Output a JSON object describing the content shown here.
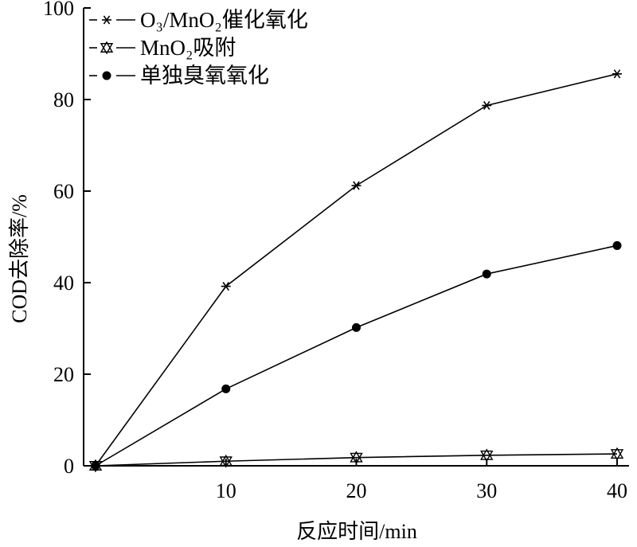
{
  "chart_data": {
    "type": "line",
    "x": [
      0,
      10,
      20,
      30,
      40
    ],
    "xlabel": "反应时间/min",
    "ylabel": "COD去除率/%",
    "xlim": [
      0,
      40
    ],
    "ylim": [
      0,
      100
    ],
    "x_ticks": [
      "10",
      "20",
      "30",
      "40"
    ],
    "y_ticks": [
      "0",
      "20",
      "40",
      "60",
      "80",
      "100"
    ],
    "grid": false,
    "legend_position": "top-left",
    "series": [
      {
        "name": "O₃/MnO₂催化氧化",
        "marker": "asterisk",
        "values": [
          0,
          39.2,
          61.2,
          78.7,
          85.6
        ]
      },
      {
        "name": "MnO₂吸附",
        "marker": "star-triangle",
        "values": [
          0,
          1.0,
          1.8,
          2.3,
          2.6
        ]
      },
      {
        "name": "单独臭氧氧化",
        "marker": "dot",
        "values": [
          0,
          16.8,
          30.2,
          41.9,
          48.1
        ]
      }
    ]
  }
}
